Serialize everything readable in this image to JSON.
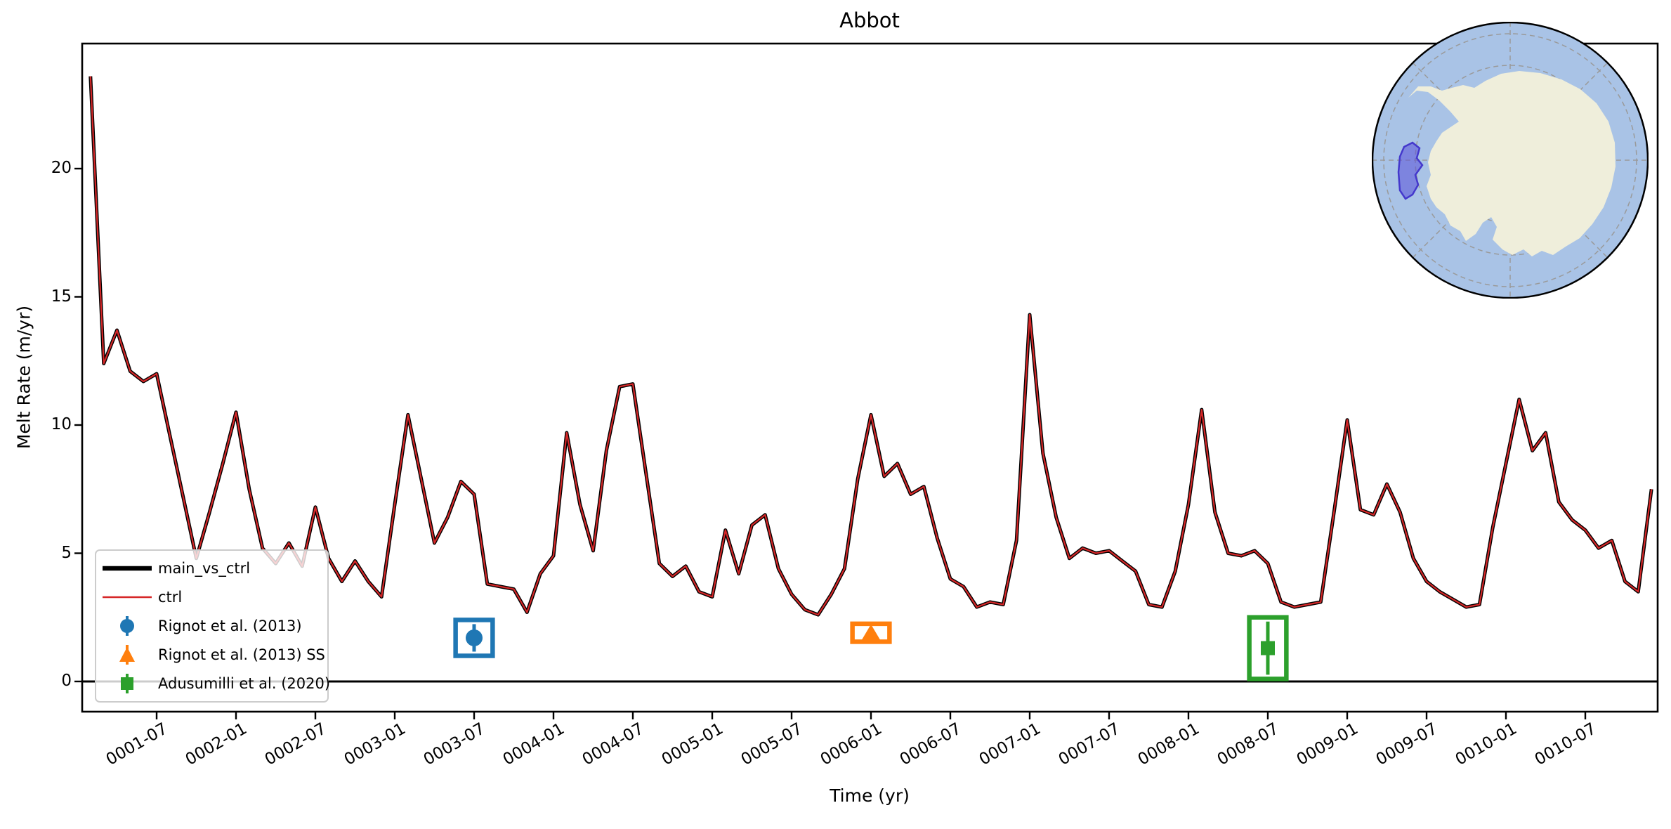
{
  "title": "Abbot",
  "axes": {
    "xlabel": "Time (yr)",
    "ylabel": "Melt Rate (m/yr)",
    "yticks": [
      0,
      5,
      10,
      15,
      20
    ],
    "xtick_labels": [
      "0001-07",
      "0002-01",
      "0002-07",
      "0003-01",
      "0003-07",
      "0004-01",
      "0004-07",
      "0005-01",
      "0005-07",
      "0006-01",
      "0006-07",
      "0007-01",
      "0007-07",
      "0008-01",
      "0008-07",
      "0009-01",
      "0009-07",
      "0010-01",
      "0010-07"
    ],
    "ylim": [
      -1.2,
      24.9
    ]
  },
  "legend": {
    "items": [
      {
        "label": "main_vs_ctrl",
        "color": "#000000",
        "handle": "thick-line"
      },
      {
        "label": "ctrl",
        "color": "#d62728",
        "handle": "thin-line"
      },
      {
        "label": "Rignot et al. (2013)",
        "color": "#1f77b4",
        "handle": "circle-errorbar"
      },
      {
        "label": "Rignot et al. (2013) SS",
        "color": "#ff7f0e",
        "handle": "triangle-errorbar"
      },
      {
        "label": "Adusumilli et al. (2020)",
        "color": "#2ca02c",
        "handle": "square-errorbar"
      }
    ]
  },
  "chart_data": {
    "type": "line",
    "title": "Abbot",
    "xlabel": "Time (yr)",
    "ylabel": "Melt Rate (m/yr)",
    "ylim": [
      -1.2,
      24.9
    ],
    "x_start": "0001-02",
    "x_step": "1 month",
    "x_end": "0010-12",
    "grid": false,
    "legend_position": "lower left",
    "zero_line": 0,
    "series": [
      {
        "name": "main_vs_ctrl",
        "color": "#000000",
        "style": "thick",
        "values": [
          23.6,
          12.4,
          13.7,
          12.1,
          11.7,
          12.0,
          9.6,
          7.2,
          4.8,
          6.6,
          8.5,
          10.5,
          7.5,
          5.2,
          4.6,
          5.4,
          4.5,
          6.8,
          4.8,
          3.9,
          4.7,
          3.9,
          3.3,
          6.9,
          10.4,
          7.9,
          5.4,
          6.4,
          7.8,
          7.3,
          3.8,
          3.7,
          3.6,
          2.7,
          4.2,
          4.9,
          9.7,
          6.9,
          5.1,
          9.0,
          11.5,
          11.6,
          8.1,
          4.6,
          4.1,
          4.5,
          3.5,
          3.3,
          5.9,
          4.2,
          6.1,
          6.5,
          4.4,
          3.4,
          2.8,
          2.6,
          3.4,
          4.4,
          7.9,
          10.4,
          8.0,
          8.5,
          7.3,
          7.6,
          5.6,
          4.0,
          3.7,
          2.9,
          3.1,
          3.0,
          5.5,
          14.3,
          8.9,
          6.4,
          4.8,
          5.2,
          5.0,
          5.1,
          4.7,
          4.3,
          3.0,
          2.9,
          4.3,
          6.9,
          10.6,
          6.6,
          5.0,
          4.9,
          5.1,
          4.6,
          3.1,
          2.9,
          3.0,
          3.1,
          6.6,
          10.2,
          6.7,
          6.5,
          7.7,
          6.6,
          4.8,
          3.9,
          3.5,
          3.2,
          2.9,
          3.0,
          6.0,
          8.5,
          11.0,
          9.0,
          9.7,
          7.0,
          6.3,
          5.9,
          5.2,
          5.5,
          3.9,
          3.5,
          7.5
        ]
      },
      {
        "name": "ctrl",
        "color": "#d62728",
        "style": "thin",
        "values": [
          23.6,
          12.4,
          13.7,
          12.1,
          11.7,
          12.0,
          9.6,
          7.2,
          4.8,
          6.6,
          8.5,
          10.5,
          7.5,
          5.2,
          4.6,
          5.4,
          4.5,
          6.8,
          4.8,
          3.9,
          4.7,
          3.9,
          3.3,
          6.9,
          10.4,
          7.9,
          5.4,
          6.4,
          7.8,
          7.3,
          3.8,
          3.7,
          3.6,
          2.7,
          4.2,
          4.9,
          9.7,
          6.9,
          5.1,
          9.0,
          11.5,
          11.6,
          8.1,
          4.6,
          4.1,
          4.5,
          3.5,
          3.3,
          5.9,
          4.2,
          6.1,
          6.5,
          4.4,
          3.4,
          2.8,
          2.6,
          3.4,
          4.4,
          7.9,
          10.4,
          8.0,
          8.5,
          7.3,
          7.6,
          5.6,
          4.0,
          3.7,
          2.9,
          3.1,
          3.0,
          5.5,
          14.3,
          8.9,
          6.4,
          4.8,
          5.2,
          5.0,
          5.1,
          4.7,
          4.3,
          3.0,
          2.9,
          4.3,
          6.9,
          10.6,
          6.6,
          5.0,
          4.9,
          5.1,
          4.6,
          3.1,
          2.9,
          3.0,
          3.1,
          6.6,
          10.2,
          6.7,
          6.5,
          7.7,
          6.6,
          4.8,
          3.9,
          3.5,
          3.2,
          2.9,
          3.0,
          6.0,
          8.5,
          11.0,
          9.0,
          9.7,
          7.0,
          6.3,
          5.9,
          5.2,
          5.5,
          3.9,
          3.5,
          7.5
        ]
      }
    ],
    "observations": [
      {
        "label": "Rignot et al. (2013)",
        "marker": "circle",
        "color": "#1f77b4",
        "date": "0003-07",
        "melt_rate": 1.7,
        "x_halfwidth_months": 1.4,
        "y_halfwidth": 0.7
      },
      {
        "label": "Rignot et al. (2013) SS",
        "marker": "triangle",
        "color": "#ff7f0e",
        "date": "0006-01",
        "melt_rate": 1.9,
        "x_halfwidth_months": 1.4,
        "y_halfwidth": 0.35
      },
      {
        "label": "Adusumilli et al. (2020)",
        "marker": "square",
        "color": "#2ca02c",
        "date": "0008-07",
        "melt_rate": 1.3,
        "x_halfwidth_months": 1.4,
        "y_halfwidth": 1.2
      }
    ]
  },
  "inset_map": {
    "description": "Antarctica locator map, south polar view",
    "highlight_region": "Abbot",
    "ocean_color": "#a9c3e6",
    "land_color": "#efeedb",
    "grid_color": "#9a9a9a",
    "highlight_fill": "#5a50d8",
    "highlight_stroke": "#4438cc",
    "border_color": "#000000"
  }
}
